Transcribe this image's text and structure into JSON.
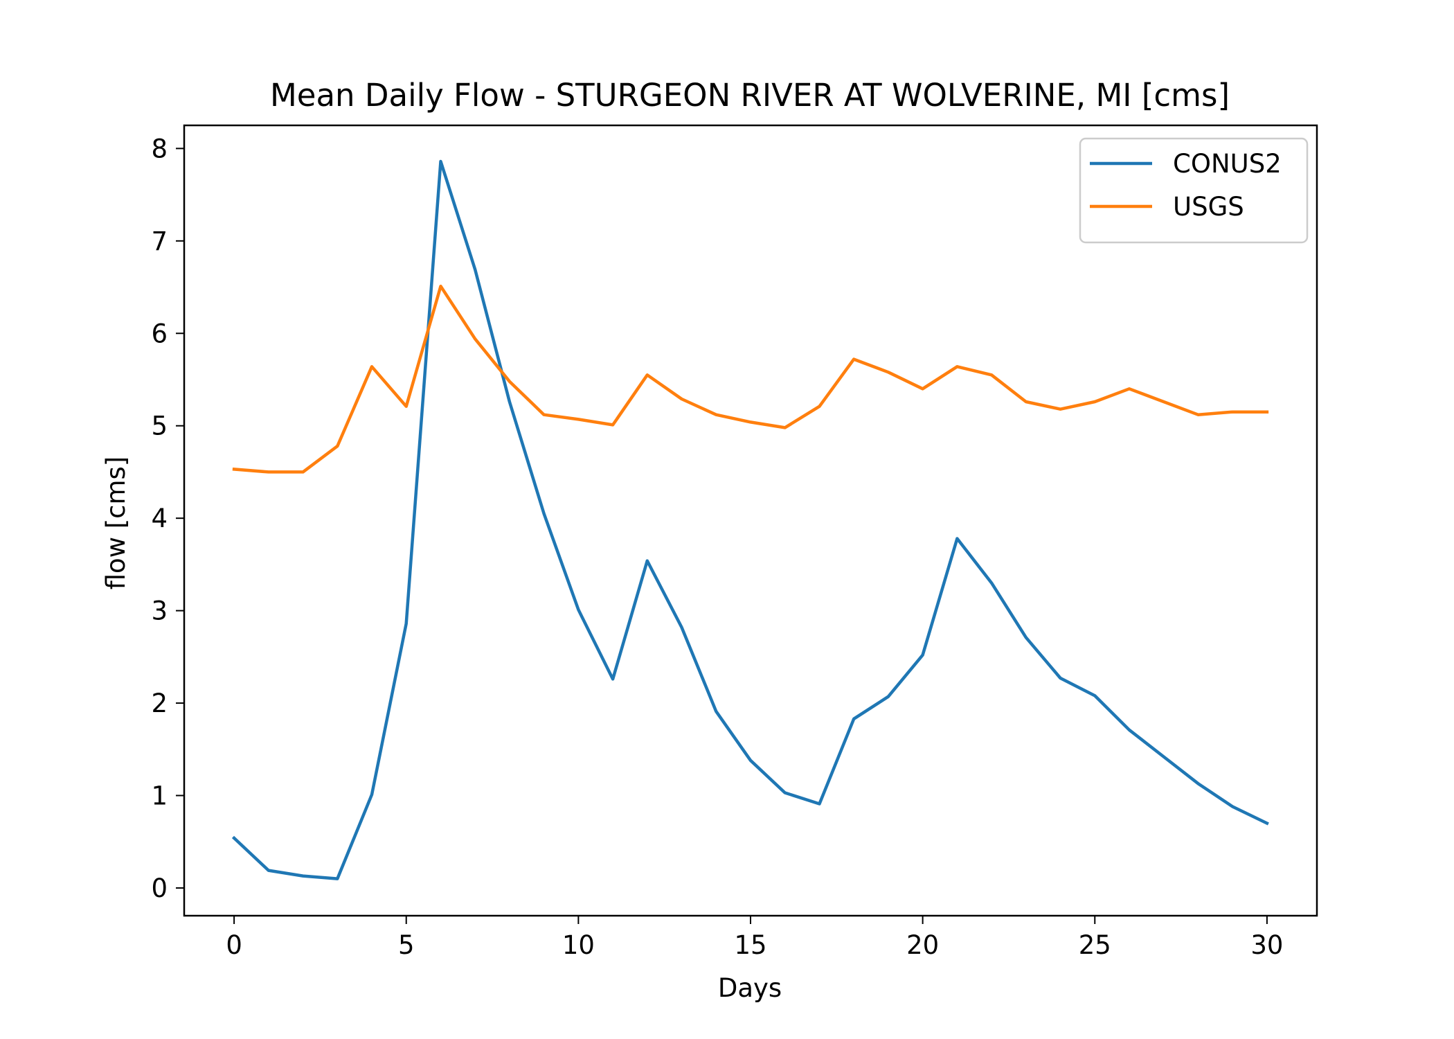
{
  "chart_data": {
    "type": "line",
    "title": "Mean Daily Flow - STURGEON RIVER AT WOLVERINE, MI [cms]",
    "xlabel": "Days",
    "ylabel": "flow [cms]",
    "xlim": [
      -1.45,
      31.45
    ],
    "ylim": [
      -0.3,
      8.25
    ],
    "xticks": [
      0,
      5,
      10,
      15,
      20,
      25,
      30
    ],
    "yticks": [
      0,
      1,
      2,
      3,
      4,
      5,
      6,
      7,
      8
    ],
    "grid": false,
    "legend_position": "top-right",
    "x": [
      0,
      1,
      2,
      3,
      4,
      5,
      6,
      7,
      8,
      9,
      10,
      11,
      12,
      13,
      14,
      15,
      16,
      17,
      18,
      19,
      20,
      21,
      22,
      23,
      24,
      25,
      26,
      27,
      28,
      29,
      30
    ],
    "series": [
      {
        "name": "CONUS2",
        "color": "#1f77b4",
        "values": [
          0.54,
          0.19,
          0.13,
          0.1,
          1.01,
          2.86,
          7.86,
          6.69,
          5.26,
          4.05,
          3.01,
          2.26,
          3.54,
          2.82,
          1.91,
          1.38,
          1.03,
          0.91,
          1.83,
          2.07,
          2.52,
          3.78,
          3.3,
          2.71,
          2.27,
          2.08,
          1.71,
          1.42,
          1.13,
          0.88,
          0.7
        ]
      },
      {
        "name": "USGS",
        "color": "#ff7f0e",
        "values": [
          4.53,
          4.5,
          4.5,
          4.78,
          5.64,
          5.21,
          6.51,
          5.94,
          5.48,
          5.12,
          5.07,
          5.01,
          5.55,
          5.29,
          5.12,
          5.04,
          4.98,
          5.21,
          5.72,
          5.58,
          5.4,
          5.64,
          5.55,
          5.26,
          5.18,
          5.26,
          5.4,
          5.26,
          5.12,
          5.15,
          5.15
        ]
      }
    ]
  }
}
